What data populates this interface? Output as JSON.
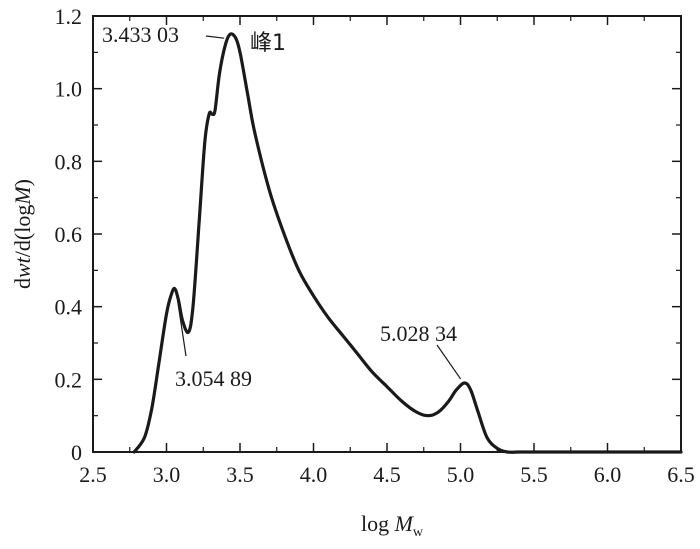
{
  "chart_data": {
    "type": "line",
    "title": "",
    "xlabel": {
      "prefix": "log ",
      "main": "M",
      "sub": "w"
    },
    "ylabel": {
      "part1": "d",
      "part2": "wt",
      "part3": "/d(log",
      "part4": "M",
      "part5": ")"
    },
    "xlim": [
      2.5,
      6.5
    ],
    "ylim": [
      0,
      1.2
    ],
    "x_ticks": [
      "2.5",
      "3.0",
      "3.5",
      "4.0",
      "4.5",
      "5.0",
      "5.5",
      "6.0",
      "6.5"
    ],
    "y_ticks": [
      "0",
      "0.2",
      "0.4",
      "0.6",
      "0.8",
      "1.0",
      "1.2"
    ],
    "grid": false,
    "line_color": "#1a1a1a",
    "series": [
      {
        "x": [
          2.78,
          2.85,
          2.9,
          2.95,
          3.0,
          3.03,
          3.055,
          3.08,
          3.11,
          3.15,
          3.18,
          3.22,
          3.26,
          3.29,
          3.31,
          3.33,
          3.36,
          3.4,
          3.433,
          3.47,
          3.5,
          3.55,
          3.6,
          3.7,
          3.8,
          3.9,
          4.0,
          4.1,
          4.2,
          4.3,
          4.4,
          4.5,
          4.6,
          4.7,
          4.78,
          4.85,
          4.92,
          4.97,
          5.028,
          5.07,
          5.12,
          5.18,
          5.25,
          5.32,
          5.4,
          5.5,
          6.0,
          6.5
        ],
        "y": [
          0.0,
          0.04,
          0.12,
          0.25,
          0.38,
          0.43,
          0.45,
          0.42,
          0.36,
          0.33,
          0.4,
          0.62,
          0.85,
          0.93,
          0.93,
          0.94,
          1.04,
          1.12,
          1.15,
          1.14,
          1.1,
          0.99,
          0.88,
          0.72,
          0.6,
          0.5,
          0.43,
          0.37,
          0.32,
          0.27,
          0.22,
          0.18,
          0.14,
          0.11,
          0.1,
          0.11,
          0.14,
          0.17,
          0.19,
          0.17,
          0.11,
          0.04,
          0.01,
          0.0,
          0.0,
          0.0,
          0.0,
          0.0
        ]
      }
    ],
    "annotations": [
      {
        "text": "3.433 03",
        "x": 3.433,
        "y": 1.15
      },
      {
        "text": "峰1",
        "x": 3.45,
        "y": 1.15
      },
      {
        "text": "3.054 89",
        "x": 3.055,
        "y": 0.45
      },
      {
        "text": "5.028 34",
        "x": 5.028,
        "y": 0.19
      }
    ]
  }
}
